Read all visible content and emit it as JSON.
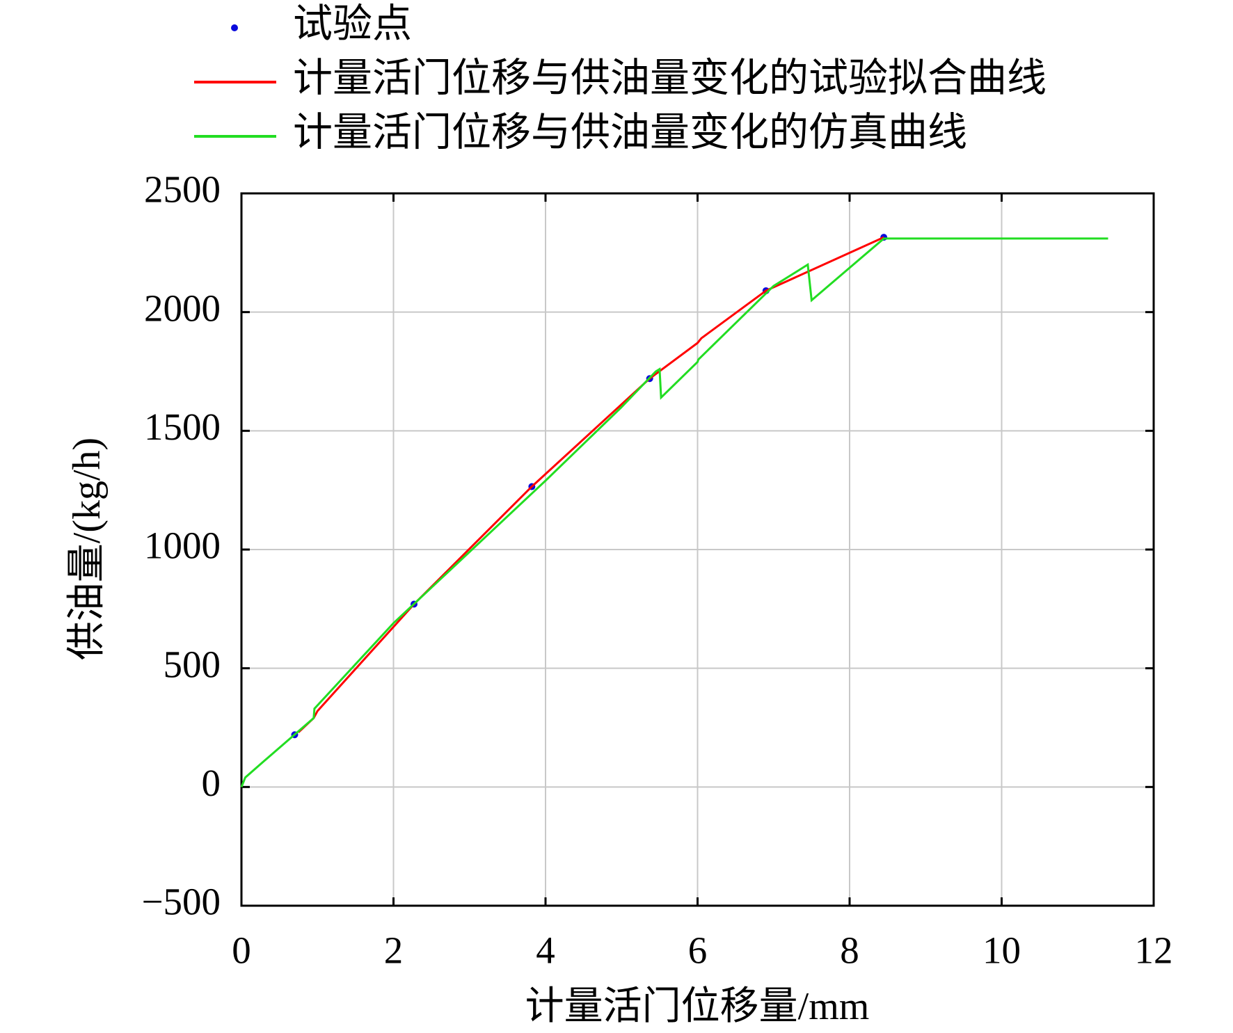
{
  "chart_data": {
    "type": "line",
    "xlabel": "计量活门位移量/mm",
    "ylabel": "供油量/(kg/h)",
    "xlim": [
      0,
      12
    ],
    "xticks": [
      0,
      2,
      4,
      6,
      8,
      10,
      12
    ],
    "ylim": [
      -500,
      2500
    ],
    "yticks": [
      {
        "value": -500,
        "label": "−500"
      },
      0,
      500,
      1000,
      1500,
      2000,
      2500
    ],
    "grid": true,
    "legend": "top",
    "series": [
      {
        "name": "试验点",
        "style": "marker",
        "color": "#0a0adc",
        "x": [
          0.7,
          2.27,
          3.82,
          5.37,
          6.9,
          8.45
        ],
        "values": [
          220,
          770,
          1265,
          1720,
          2090,
          2315
        ]
      },
      {
        "name": "计量活门位移与供油量变化的试验拟合曲线",
        "style": "line",
        "color": "#ff0000",
        "x": [
          0.75,
          0.95,
          1.0,
          2.27,
          3.82,
          5.37,
          6.0,
          6.05,
          6.9,
          8.45
        ],
        "values": [
          230,
          290,
          320,
          770,
          1265,
          1720,
          1870,
          1890,
          2090,
          2315
        ]
      },
      {
        "name": "计量活门位移与供油量变化的仿真曲线",
        "style": "line",
        "color": "#22dd22",
        "x": [
          0,
          0.05,
          0.3,
          0.95,
          0.96,
          2.0,
          3.0,
          4.0,
          5.0,
          5.45,
          5.5,
          5.52,
          6.0,
          6.01,
          7.0,
          7.45,
          7.5,
          8.45,
          11.4
        ],
        "values": [
          0,
          40,
          110,
          290,
          330,
          690,
          990,
          1290,
          1600,
          1750,
          1760,
          1640,
          1790,
          1800,
          2110,
          2200,
          2050,
          2310,
          2310
        ]
      }
    ]
  }
}
